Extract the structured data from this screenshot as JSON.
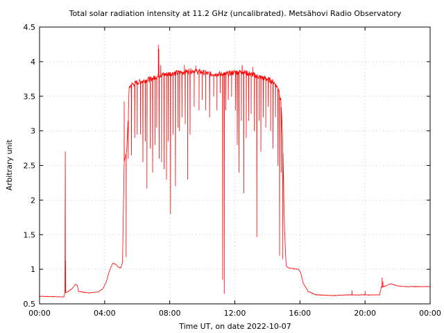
{
  "chart_data": {
    "type": "line",
    "title": "Total solar radiation intensity at 11.2 GHz (uncalibrated). Metsähovi Radio Observatory",
    "xlabel": "Time UT, on date 2022-10-07",
    "ylabel": "Arbitrary unit",
    "xlim": [
      0,
      24
    ],
    "ylim": [
      0.5,
      4.5
    ],
    "xticks": [
      0,
      4,
      8,
      12,
      16,
      20,
      24
    ],
    "xtick_labels": [
      "00:00",
      "04:00",
      "08:00",
      "12:00",
      "16:00",
      "20:00",
      "00:00"
    ],
    "yticks": [
      0.5,
      1,
      1.5,
      2,
      2.5,
      3,
      3.5,
      4,
      4.5
    ],
    "ytick_labels": [
      "0.5",
      "1",
      "1.5",
      "2",
      "2.5",
      "3",
      "3.5",
      "4",
      "4.5"
    ],
    "grid": true,
    "series": [
      {
        "color": "#ff0000",
        "baseline": [
          [
            0.0,
            0.61
          ],
          [
            1.5,
            0.6
          ],
          [
            1.55,
            0.66
          ],
          [
            1.7,
            0.67
          ],
          [
            2.0,
            0.72
          ],
          [
            2.2,
            0.78
          ],
          [
            2.3,
            0.78
          ],
          [
            2.4,
            0.68
          ],
          [
            3.0,
            0.66
          ],
          [
            3.6,
            0.67
          ],
          [
            3.9,
            0.72
          ],
          [
            4.1,
            0.82
          ],
          [
            4.3,
            0.98
          ],
          [
            4.5,
            1.09
          ],
          [
            4.7,
            1.07
          ],
          [
            4.85,
            1.03
          ],
          [
            5.0,
            1.02
          ],
          [
            5.1,
            1.1
          ],
          [
            5.2,
            2.55
          ],
          [
            5.35,
            2.7
          ],
          [
            5.45,
            3.2
          ],
          [
            5.5,
            3.6
          ],
          [
            5.6,
            3.66
          ],
          [
            6.0,
            3.7
          ],
          [
            6.5,
            3.73
          ],
          [
            7.0,
            3.76
          ],
          [
            7.3,
            3.8
          ],
          [
            7.8,
            3.82
          ],
          [
            8.5,
            3.84
          ],
          [
            9.5,
            3.87
          ],
          [
            10.5,
            3.82
          ],
          [
            11.5,
            3.82
          ],
          [
            12.0,
            3.85
          ],
          [
            12.5,
            3.85
          ],
          [
            13.0,
            3.82
          ],
          [
            13.5,
            3.78
          ],
          [
            14.0,
            3.75
          ],
          [
            14.4,
            3.7
          ],
          [
            14.7,
            3.6
          ],
          [
            14.85,
            3.4
          ],
          [
            14.95,
            2.8
          ],
          [
            15.05,
            1.6
          ],
          [
            15.15,
            1.05
          ],
          [
            15.3,
            1.02
          ],
          [
            15.6,
            1.01
          ],
          [
            15.9,
            1.0
          ],
          [
            16.05,
            0.95
          ],
          [
            16.2,
            0.8
          ],
          [
            16.5,
            0.68
          ],
          [
            17.0,
            0.63
          ],
          [
            18.0,
            0.62
          ],
          [
            19.0,
            0.63
          ],
          [
            20.0,
            0.63
          ],
          [
            20.5,
            0.63
          ],
          [
            20.9,
            0.63
          ],
          [
            21.0,
            0.74
          ],
          [
            21.4,
            0.77
          ],
          [
            21.6,
            0.79
          ],
          [
            22.0,
            0.76
          ],
          [
            22.5,
            0.75
          ],
          [
            23.0,
            0.75
          ],
          [
            24.0,
            0.75
          ]
        ],
        "dips": [
          [
            1.58,
            2.7
          ],
          [
            1.6,
            1.12
          ],
          [
            5.2,
            3.42
          ],
          [
            5.32,
            1.18
          ],
          [
            5.45,
            2.6
          ],
          [
            5.65,
            2.65
          ],
          [
            5.85,
            2.9
          ],
          [
            6.0,
            2.95
          ],
          [
            6.2,
            2.95
          ],
          [
            6.35,
            2.55
          ],
          [
            6.5,
            2.85
          ],
          [
            6.6,
            2.17
          ],
          [
            6.8,
            2.75
          ],
          [
            6.95,
            2.4
          ],
          [
            7.1,
            2.8
          ],
          [
            7.2,
            3.05
          ],
          [
            7.35,
            2.6
          ],
          [
            7.5,
            2.55
          ],
          [
            7.65,
            2.45
          ],
          [
            7.8,
            2.3
          ],
          [
            7.9,
            2.85
          ],
          [
            8.05,
            1.8
          ],
          [
            8.2,
            2.95
          ],
          [
            8.35,
            2.2
          ],
          [
            8.5,
            3.05
          ],
          [
            8.6,
            3.0
          ],
          [
            8.75,
            3.2
          ],
          [
            8.95,
            3.1
          ],
          [
            9.1,
            2.3
          ],
          [
            9.25,
            2.95
          ],
          [
            9.5,
            3.35
          ],
          [
            9.8,
            3.3
          ],
          [
            10.0,
            3.45
          ],
          [
            10.2,
            3.3
          ],
          [
            10.45,
            3.2
          ],
          [
            10.7,
            3.5
          ],
          [
            10.9,
            3.3
          ],
          [
            11.1,
            3.55
          ],
          [
            11.25,
            0.85
          ],
          [
            11.35,
            0.65
          ],
          [
            11.45,
            3.3
          ],
          [
            11.6,
            3.45
          ],
          [
            11.8,
            3.5
          ],
          [
            12.05,
            3.3
          ],
          [
            12.15,
            2.8
          ],
          [
            12.25,
            2.4
          ],
          [
            12.4,
            3.15
          ],
          [
            12.55,
            2.1
          ],
          [
            12.7,
            2.9
          ],
          [
            12.85,
            3.15
          ],
          [
            13.0,
            3.25
          ],
          [
            13.2,
            3.0
          ],
          [
            13.35,
            1.47
          ],
          [
            13.5,
            3.15
          ],
          [
            13.6,
            2.7
          ],
          [
            13.75,
            3.2
          ],
          [
            13.9,
            3.05
          ],
          [
            14.05,
            3.35
          ],
          [
            14.2,
            3.0
          ],
          [
            14.35,
            2.75
          ],
          [
            14.5,
            3.2
          ],
          [
            14.65,
            2.5
          ],
          [
            14.75,
            1.2
          ],
          [
            14.85,
            2.4
          ],
          [
            14.95,
            1.15
          ],
          [
            19.2,
            0.69
          ],
          [
            20.0,
            0.68
          ],
          [
            21.05,
            0.88
          ],
          [
            21.1,
            0.82
          ]
        ],
        "spikes": [
          [
            7.3,
            4.24
          ],
          [
            7.33,
            4.18
          ],
          [
            7.45,
            3.95
          ],
          [
            8.9,
            3.95
          ],
          [
            9.6,
            3.94
          ],
          [
            12.45,
            3.95
          ],
          [
            13.1,
            3.92
          ]
        ]
      }
    ]
  }
}
